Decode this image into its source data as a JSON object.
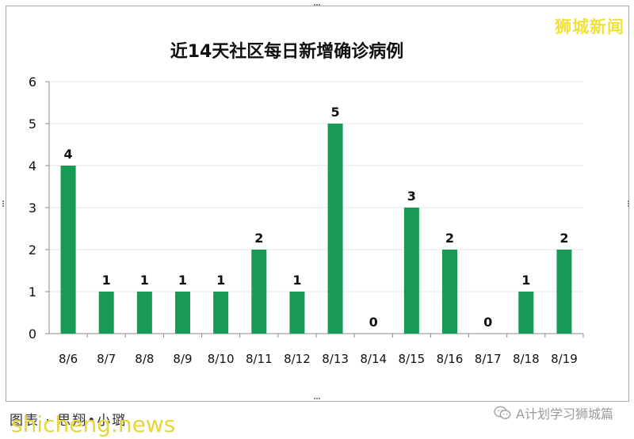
{
  "watermark": {
    "brand": "狮城新闻",
    "site": "shicheng.news",
    "credit": "图表 · 思翔•小璐",
    "wechat_account": "A计划学习狮城篇",
    "wechat_icon": "wechat-icon"
  },
  "colors": {
    "bar": "#169a54",
    "axis": "#8c8c8c",
    "grid": "#e6e6e6",
    "brand": "#f1e23a"
  },
  "chart_data": {
    "type": "bar",
    "title": "近14天社区每日新增确诊病例",
    "categories": [
      "8/6",
      "8/7",
      "8/8",
      "8/9",
      "8/10",
      "8/11",
      "8/12",
      "8/13",
      "8/14",
      "8/15",
      "8/16",
      "8/17",
      "8/18",
      "8/19"
    ],
    "values": [
      4,
      1,
      1,
      1,
      1,
      2,
      1,
      5,
      0,
      3,
      2,
      0,
      1,
      2
    ],
    "ylim": [
      0,
      6
    ],
    "yticks": [
      0,
      1,
      2,
      3,
      4,
      5,
      6
    ],
    "grid": true,
    "legend": "none",
    "xlabel": "",
    "ylabel": ""
  }
}
